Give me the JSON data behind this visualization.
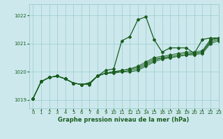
{
  "title": "Graphe pression niveau de la mer (hPa)",
  "background_color": "#cce8ec",
  "grid_color": "#99cccc",
  "line_color": "#1a5e20",
  "xlim": [
    -0.5,
    23
  ],
  "ylim": [
    1018.7,
    1022.4
  ],
  "xticks": [
    0,
    1,
    2,
    3,
    4,
    5,
    6,
    7,
    8,
    9,
    10,
    11,
    12,
    13,
    14,
    15,
    16,
    17,
    18,
    19,
    20,
    21,
    22,
    23
  ],
  "yticks": [
    1019,
    1020,
    1021,
    1022
  ],
  "ytick_labels": [
    "1019",
    "1020",
    "1021",
    "1022"
  ],
  "series": [
    [
      1019.05,
      1019.65,
      1019.8,
      1019.85,
      1019.75,
      1019.6,
      1019.55,
      1019.6,
      1019.85,
      1020.05,
      1020.1,
      1021.1,
      1021.25,
      1021.85,
      1021.95,
      1021.15,
      1020.7,
      1020.85,
      1020.85,
      1020.85,
      1020.65,
      1021.15,
      1021.2,
      1021.2
    ],
    [
      1019.05,
      1019.65,
      1019.8,
      1019.85,
      1019.75,
      1019.6,
      1019.55,
      1019.6,
      1019.85,
      1019.95,
      1020.0,
      1020.05,
      1020.1,
      1020.2,
      1020.35,
      1020.5,
      1020.55,
      1020.6,
      1020.65,
      1020.7,
      1020.7,
      1020.75,
      1021.15,
      1021.2
    ],
    [
      1019.05,
      1019.65,
      1019.8,
      1019.85,
      1019.75,
      1019.6,
      1019.55,
      1019.6,
      1019.85,
      1019.95,
      1020.0,
      1020.05,
      1020.1,
      1020.15,
      1020.3,
      1020.45,
      1020.5,
      1020.55,
      1020.6,
      1020.65,
      1020.65,
      1020.7,
      1021.1,
      1021.2
    ],
    [
      1019.05,
      1019.65,
      1019.8,
      1019.85,
      1019.75,
      1019.6,
      1019.55,
      1019.6,
      1019.85,
      1019.95,
      1020.0,
      1020.0,
      1020.05,
      1020.1,
      1020.25,
      1020.4,
      1020.5,
      1020.5,
      1020.55,
      1020.6,
      1020.65,
      1020.7,
      1021.05,
      1021.15
    ],
    [
      1019.05,
      1019.65,
      1019.8,
      1019.85,
      1019.75,
      1019.6,
      1019.55,
      1019.55,
      1019.85,
      1019.95,
      1019.95,
      1020.0,
      1020.0,
      1020.05,
      1020.2,
      1020.35,
      1020.45,
      1020.5,
      1020.55,
      1020.6,
      1020.6,
      1020.65,
      1021.0,
      1021.1
    ]
  ]
}
